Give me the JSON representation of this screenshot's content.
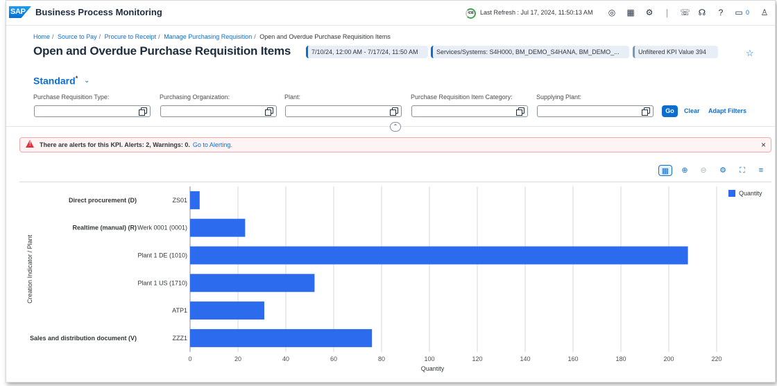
{
  "shell": {
    "logo": "SAP",
    "title": "Business Process Monitoring",
    "refresh_badge": "438",
    "last_refresh": "Last Refresh : Jul 17, 2024, 11:50:13 AM",
    "notification_count": "0"
  },
  "breadcrumb": [
    "Home",
    "Source to Pay",
    "Procure to Receipt",
    "Manage Purchasing Requisition",
    "Open and Overdue Purchase Requisition Items"
  ],
  "page": {
    "title": "Open and Overdue Purchase Requisition Items",
    "chip_date": "7/10/24, 12:00 AM - 7/17/24, 11:50 AM",
    "chip_systems": "Services/Systems: S4H000, BM_DEMO_S4HANA, BM_DEMO_...",
    "chip_kpi": "Unfiltered KPI Value  394"
  },
  "variant": {
    "name": "Standard",
    "modified": "*"
  },
  "filters": [
    {
      "label": "Purchase Requisition Type:",
      "value": ""
    },
    {
      "label": "Purchasing Organization:",
      "value": ""
    },
    {
      "label": "Plant:",
      "value": ""
    },
    {
      "label": "Purchase Requisition Item Category:",
      "value": ""
    },
    {
      "label": "Supplying Plant:",
      "value": ""
    }
  ],
  "filter_actions": {
    "go": "Go",
    "clear": "Clear",
    "adapt": "Adapt Filters"
  },
  "alert": {
    "text": "There are alerts for this KPI. Alerts: 2, Warnings: 0.",
    "link": "Go to Alerting."
  },
  "colors": {
    "accent": "#0a6ed1",
    "bar": "#2c6bed",
    "alert": "#e0323c"
  },
  "chart_data": {
    "type": "bar",
    "orientation": "horizontal",
    "categories": [
      {
        "group": "Direct procurement (D)",
        "label": "ZS01",
        "value": 4
      },
      {
        "group": "Realtime (manual) (R)",
        "label": "Werk 0001 (0001)",
        "value": 23
      },
      {
        "group": "",
        "label": "Plant 1 DE (1010)",
        "value": 208
      },
      {
        "group": "",
        "label": "Plant 1 US (1710)",
        "value": 52
      },
      {
        "group": "",
        "label": "ATP1",
        "value": 31
      },
      {
        "group": "Sales and distribution document (V)",
        "label": "ZZZ1",
        "value": 76
      }
    ],
    "series": [
      {
        "name": "Quantity"
      }
    ],
    "xlabel": "Quantity",
    "ylabel": "Creation Indicator / Plant",
    "xlim": [
      0,
      220
    ],
    "xticks": [
      0,
      20,
      40,
      60,
      80,
      100,
      120,
      140,
      160,
      180,
      200,
      220
    ],
    "grid": true,
    "legend": "top-right"
  }
}
